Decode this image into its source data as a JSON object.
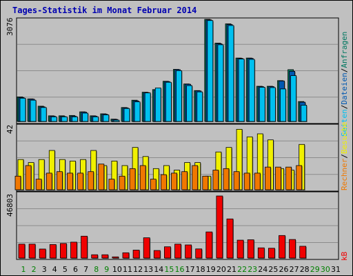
{
  "title": "Tages-Statistik im Monat Februar 2014",
  "colors": {
    "anfragen": "#007860",
    "dateien": "#0058b0",
    "seiten": "#00c0f0",
    "besuche": "#f0f000",
    "rechner": "#f07800",
    "kb": "#f00000",
    "weekday": "#000000",
    "weekend": "#008000"
  },
  "right_labels": {
    "anfragen": "Anfragen",
    "dateien": "Dateien",
    "seiten": "Seiten",
    "besuche": "Besuche",
    "rechner": "Rechner",
    "kb": "kB",
    "sep": "/"
  },
  "chart_data": [
    {
      "type": "bar",
      "name": "top",
      "ymax_label": "3076",
      "ylim": [
        0,
        3076
      ],
      "categories": [
        "1",
        "2",
        "3",
        "4",
        "5",
        "6",
        "7",
        "8",
        "9",
        "10",
        "11",
        "12",
        "13",
        "14",
        "15",
        "16",
        "17",
        "18",
        "19",
        "20",
        "21",
        "22",
        "23",
        "24",
        "25",
        "26",
        "27",
        "28",
        "29",
        "30",
        "31"
      ],
      "series": [
        {
          "name": "Anfragen",
          "values": [
            740,
            680,
            460,
            170,
            170,
            180,
            290,
            170,
            230,
            70,
            420,
            640,
            880,
            960,
            1210,
            1570,
            1130,
            930,
            3076,
            2360,
            2940,
            1910,
            1910,
            1060,
            1060,
            1230,
            1560,
            600,
            0,
            0,
            0
          ]
        },
        {
          "name": "Dateien",
          "values": [
            720,
            670,
            440,
            160,
            150,
            160,
            280,
            160,
            220,
            60,
            410,
            620,
            870,
            950,
            1200,
            1560,
            1120,
            920,
            3060,
            2340,
            2920,
            1900,
            1900,
            1050,
            1050,
            1220,
            1510,
            580,
            0,
            0,
            0
          ]
        },
        {
          "name": "Seiten",
          "values": [
            700,
            640,
            420,
            140,
            140,
            140,
            250,
            140,
            200,
            40,
            390,
            590,
            860,
            1010,
            1180,
            1530,
            1080,
            890,
            3040,
            2310,
            2890,
            1880,
            1870,
            1030,
            1020,
            980,
            1380,
            490,
            0,
            0,
            0
          ]
        }
      ]
    },
    {
      "type": "bar",
      "name": "middle",
      "ymax_label": "42",
      "ylim": [
        0,
        42
      ],
      "categories": [
        "1",
        "2",
        "3",
        "4",
        "5",
        "6",
        "7",
        "8",
        "9",
        "10",
        "11",
        "12",
        "13",
        "14",
        "15",
        "16",
        "17",
        "18",
        "19",
        "20",
        "21",
        "22",
        "23",
        "24",
        "25",
        "26",
        "27",
        "28",
        "29",
        "30",
        "31"
      ],
      "series": [
        {
          "name": "Besuche",
          "values": [
            20,
            18,
            20,
            26,
            20,
            19,
            20,
            26,
            16,
            19,
            16,
            28,
            22,
            14,
            16,
            13,
            18,
            18,
            9,
            25,
            28,
            40,
            35,
            37,
            33,
            14,
            13,
            30,
            0,
            0,
            0
          ]
        },
        {
          "name": "Rechner",
          "values": [
            9,
            16,
            7,
            11,
            12,
            11,
            11,
            12,
            17,
            7,
            9,
            14,
            16,
            7,
            10,
            11,
            12,
            16,
            9,
            13,
            14,
            12,
            11,
            11,
            15,
            15,
            15,
            16,
            0,
            0,
            0
          ]
        }
      ]
    },
    {
      "type": "bar",
      "name": "bottom",
      "ymax_label": "46803",
      "ylim": [
        0,
        46803
      ],
      "categories": [
        "1",
        "2",
        "3",
        "4",
        "5",
        "6",
        "7",
        "8",
        "9",
        "10",
        "11",
        "12",
        "13",
        "14",
        "15",
        "16",
        "17",
        "18",
        "19",
        "20",
        "21",
        "22",
        "23",
        "24",
        "25",
        "26",
        "27",
        "28",
        "29",
        "30",
        "31"
      ],
      "series": [
        {
          "name": "kB",
          "values": [
            10500,
            10500,
            6800,
            10200,
            11000,
            12000,
            16500,
            2500,
            2500,
            900,
            4000,
            6000,
            15300,
            5700,
            8500,
            10500,
            9900,
            6900,
            19700,
            46803,
            29500,
            13500,
            13800,
            7700,
            7400,
            17000,
            14000,
            8900,
            0,
            0,
            0
          ]
        }
      ]
    }
  ],
  "x_axis": {
    "labels": [
      "1",
      "2",
      "3",
      "4",
      "5",
      "6",
      "7",
      "8",
      "9",
      "10",
      "11",
      "12",
      "13",
      "14",
      "15",
      "16",
      "17",
      "18",
      "19",
      "20",
      "21",
      "22",
      "23",
      "24",
      "25",
      "26",
      "27",
      "28",
      "29",
      "30",
      "31"
    ],
    "weekend": [
      1,
      2,
      8,
      9,
      15,
      16,
      22,
      23,
      29,
      30
    ]
  }
}
